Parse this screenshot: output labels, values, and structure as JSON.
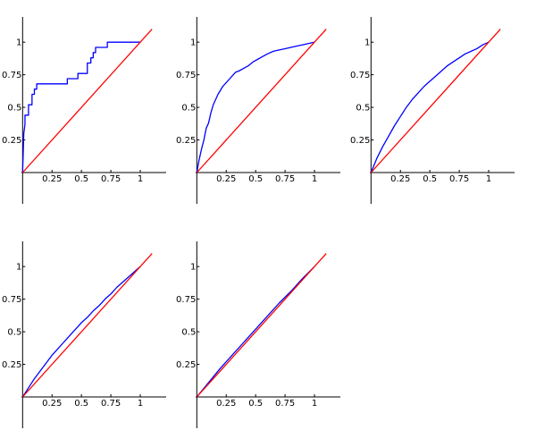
{
  "chart_data": [
    {
      "type": "line",
      "xlim": [
        -0.01,
        1.22
      ],
      "ylim": [
        -0.24,
        1.2
      ],
      "xticks": [
        {
          "value": 0.25,
          "label": "0.25"
        },
        {
          "value": 0.5,
          "label": "0.5"
        },
        {
          "value": 0.75,
          "label": "0.75"
        },
        {
          "value": 1,
          "label": "1"
        }
      ],
      "yticks": [
        {
          "value": 0.25,
          "label": "0.25"
        },
        {
          "value": 0.5,
          "label": "0.5"
        },
        {
          "value": 0.75,
          "label": "0.75"
        },
        {
          "value": 1,
          "label": "1"
        }
      ],
      "series": [
        {
          "color": "#0000ff",
          "x": [
            0,
            0.01,
            0.02,
            0.02,
            0.03,
            0.05,
            0.05,
            0.06,
            0.08,
            0.08,
            0.1,
            0.1,
            0.12,
            0.12,
            0.14,
            0.14,
            0.38,
            0.38,
            0.47,
            0.47,
            0.55,
            0.55,
            0.58,
            0.58,
            0.6,
            0.6,
            0.62,
            0.62,
            0.72,
            0.72,
            1.0
          ],
          "y": [
            0,
            0.3,
            0.37,
            0.44,
            0.44,
            0.44,
            0.52,
            0.52,
            0.52,
            0.6,
            0.6,
            0.64,
            0.64,
            0.68,
            0.68,
            0.68,
            0.68,
            0.72,
            0.72,
            0.76,
            0.76,
            0.84,
            0.84,
            0.88,
            0.88,
            0.92,
            0.92,
            0.96,
            0.96,
            1.0,
            1.0
          ]
        },
        {
          "color": "#ff0000",
          "x": [
            0,
            1.1
          ],
          "y": [
            0,
            1.1
          ]
        }
      ]
    },
    {
      "type": "line",
      "xlim": [
        -0.01,
        1.22
      ],
      "ylim": [
        -0.24,
        1.2
      ],
      "xticks": [
        {
          "value": 0.25,
          "label": "0.25"
        },
        {
          "value": 0.5,
          "label": "0.5"
        },
        {
          "value": 0.75,
          "label": "0.75"
        },
        {
          "value": 1,
          "label": "1"
        }
      ],
      "yticks": [
        {
          "value": 0.25,
          "label": "0.25"
        },
        {
          "value": 0.5,
          "label": "0.5"
        },
        {
          "value": 0.75,
          "label": "0.75"
        },
        {
          "value": 1,
          "label": "1"
        }
      ],
      "series": [
        {
          "color": "#0000ff",
          "x": [
            0,
            0.02,
            0.04,
            0.06,
            0.08,
            0.1,
            0.12,
            0.14,
            0.16,
            0.18,
            0.2,
            0.22,
            0.25,
            0.28,
            0.3,
            0.33,
            0.36,
            0.4,
            0.44,
            0.48,
            0.52,
            0.56,
            0.6,
            0.65,
            0.7,
            0.75,
            0.8,
            0.85,
            0.9,
            0.95,
            1.0
          ],
          "y": [
            0,
            0.1,
            0.18,
            0.25,
            0.34,
            0.38,
            0.46,
            0.52,
            0.56,
            0.6,
            0.63,
            0.66,
            0.69,
            0.72,
            0.74,
            0.77,
            0.78,
            0.8,
            0.82,
            0.85,
            0.87,
            0.89,
            0.91,
            0.93,
            0.94,
            0.95,
            0.96,
            0.97,
            0.98,
            0.99,
            1.0
          ]
        },
        {
          "color": "#ff0000",
          "x": [
            0,
            1.1
          ],
          "y": [
            0,
            1.1
          ]
        }
      ]
    },
    {
      "type": "line",
      "xlim": [
        -0.01,
        1.22
      ],
      "ylim": [
        -0.24,
        1.2
      ],
      "xticks": [
        {
          "value": 0.25,
          "label": "0.25"
        },
        {
          "value": 0.5,
          "label": "0.5"
        },
        {
          "value": 0.75,
          "label": "0.75"
        },
        {
          "value": 1,
          "label": "1"
        }
      ],
      "yticks": [
        {
          "value": 0.25,
          "label": "0.25"
        },
        {
          "value": 0.5,
          "label": "0.5"
        },
        {
          "value": 0.75,
          "label": "0.75"
        },
        {
          "value": 1,
          "label": "1"
        }
      ],
      "series": [
        {
          "color": "#0000ff",
          "x": [
            0,
            0.05,
            0.1,
            0.15,
            0.2,
            0.25,
            0.3,
            0.35,
            0.4,
            0.45,
            0.5,
            0.55,
            0.6,
            0.65,
            0.7,
            0.75,
            0.8,
            0.85,
            0.9,
            0.95,
            1.0
          ],
          "y": [
            0,
            0.11,
            0.2,
            0.28,
            0.36,
            0.43,
            0.5,
            0.56,
            0.61,
            0.66,
            0.7,
            0.74,
            0.78,
            0.82,
            0.85,
            0.88,
            0.91,
            0.93,
            0.95,
            0.98,
            1.0
          ]
        },
        {
          "color": "#ff0000",
          "x": [
            0,
            1.1
          ],
          "y": [
            0,
            1.1
          ]
        }
      ]
    },
    {
      "type": "line",
      "xlim": [
        -0.01,
        1.22
      ],
      "ylim": [
        -0.24,
        1.2
      ],
      "xticks": [
        {
          "value": 0.25,
          "label": "0.25"
        },
        {
          "value": 0.5,
          "label": "0.5"
        },
        {
          "value": 0.75,
          "label": "0.75"
        },
        {
          "value": 1,
          "label": "1"
        }
      ],
      "yticks": [
        {
          "value": 0.25,
          "label": "0.25"
        },
        {
          "value": 0.5,
          "label": "0.5"
        },
        {
          "value": 0.75,
          "label": "0.75"
        },
        {
          "value": 1,
          "label": "1"
        }
      ],
      "series": [
        {
          "color": "#0000ff",
          "x": [
            0,
            0.05,
            0.1,
            0.15,
            0.2,
            0.25,
            0.3,
            0.35,
            0.4,
            0.45,
            0.5,
            0.55,
            0.6,
            0.65,
            0.7,
            0.75,
            0.8,
            0.85,
            0.9,
            0.95,
            1.0
          ],
          "y": [
            0,
            0.07,
            0.14,
            0.2,
            0.26,
            0.32,
            0.37,
            0.42,
            0.47,
            0.52,
            0.57,
            0.61,
            0.66,
            0.7,
            0.75,
            0.79,
            0.84,
            0.88,
            0.92,
            0.96,
            1.0
          ]
        },
        {
          "color": "#ff0000",
          "x": [
            0,
            1.1
          ],
          "y": [
            0,
            1.1
          ]
        }
      ]
    },
    {
      "type": "line",
      "xlim": [
        -0.01,
        1.22
      ],
      "ylim": [
        -0.24,
        1.2
      ],
      "xticks": [
        {
          "value": 0.25,
          "label": "0.25"
        },
        {
          "value": 0.5,
          "label": "0.5"
        },
        {
          "value": 0.75,
          "label": "0.75"
        },
        {
          "value": 1,
          "label": "1"
        }
      ],
      "yticks": [
        {
          "value": 0.25,
          "label": "0.25"
        },
        {
          "value": 0.5,
          "label": "0.5"
        },
        {
          "value": 0.75,
          "label": "0.75"
        },
        {
          "value": 1,
          "label": "1"
        }
      ],
      "series": [
        {
          "color": "#0000ff",
          "x": [
            0,
            0.1,
            0.2,
            0.3,
            0.4,
            0.5,
            0.6,
            0.7,
            0.8,
            0.9,
            1.0
          ],
          "y": [
            0,
            0.11,
            0.22,
            0.32,
            0.42,
            0.52,
            0.62,
            0.72,
            0.81,
            0.91,
            1.0
          ]
        },
        {
          "color": "#ff0000",
          "x": [
            0,
            1.1
          ],
          "y": [
            0,
            1.1
          ]
        }
      ]
    }
  ]
}
